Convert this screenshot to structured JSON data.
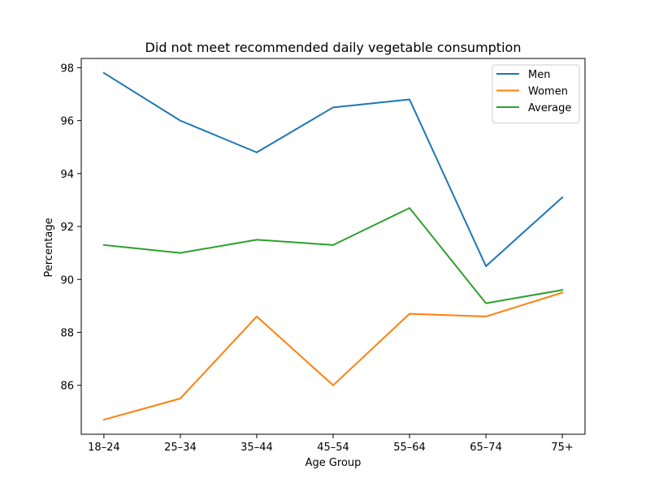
{
  "chart_data": {
    "type": "line",
    "title": "Did not meet recommended daily vegetable consumption",
    "xlabel": "Age Group",
    "ylabel": "Percentage",
    "categories": [
      "18–24",
      "25–34",
      "35–44",
      "45–54",
      "55–64",
      "65–74",
      "75+"
    ],
    "ylim": [
      84.15,
      98.35
    ],
    "yticks": [
      86,
      88,
      90,
      92,
      94,
      96,
      98
    ],
    "grid": false,
    "legend_position": "top-right",
    "series": [
      {
        "name": "Men",
        "color": "#1f77b4",
        "values": [
          97.8,
          96.0,
          94.8,
          96.5,
          96.8,
          90.5,
          93.1
        ]
      },
      {
        "name": "Women",
        "color": "#ff7f0e",
        "values": [
          84.7,
          85.5,
          88.6,
          86.0,
          88.7,
          88.6,
          89.5
        ]
      },
      {
        "name": "Average",
        "color": "#2ca02c",
        "values": [
          91.3,
          91.0,
          91.5,
          91.3,
          92.7,
          89.1,
          89.6
        ]
      }
    ]
  }
}
